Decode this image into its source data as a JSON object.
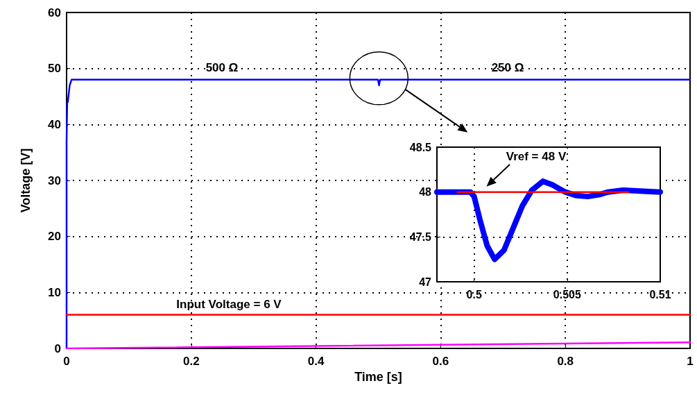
{
  "chart_data": [
    {
      "type": "line",
      "xlabel": "Time [s]",
      "ylabel": "Voltage [V]",
      "xlim": [
        0,
        1
      ],
      "ylim": [
        0,
        60
      ],
      "xticks": [
        0,
        0.2,
        0.4,
        0.6,
        0.8,
        1
      ],
      "yticks": [
        0,
        10,
        20,
        30,
        40,
        50,
        60
      ],
      "grid": true,
      "marker": "none",
      "line_style": "solid",
      "series": [
        {
          "color": "#0000ff",
          "x": [
            0,
            0,
            0.001,
            0.002,
            0.005,
            0.008,
            0.4995,
            0.5011,
            0.503,
            1
          ],
          "values": [
            0,
            37,
            44,
            44,
            47,
            48,
            48,
            47,
            48,
            48
          ]
        },
        {
          "color": "#ff0000",
          "x": [
            0,
            1
          ],
          "values": [
            6,
            6
          ]
        },
        {
          "color": "#ff00ff",
          "x": [
            0,
            1
          ],
          "values": [
            0,
            1.1
          ]
        }
      ],
      "annotations": [
        "500 Ω",
        "250 Ω",
        "Input Voltage = 6 V"
      ]
    },
    {
      "type": "line",
      "xlim": [
        0.498,
        0.51
      ],
      "ylim": [
        47,
        48.5
      ],
      "xticks": [
        0.5,
        0.505,
        0.51
      ],
      "yticks": [
        47,
        47.5,
        48,
        48.5
      ],
      "grid": true,
      "marker": "none",
      "line_style": "solid",
      "series": [
        {
          "color": "#0000ff",
          "x": [
            0.498,
            0.4998,
            0.5,
            0.5003,
            0.5007,
            0.5011,
            0.5016,
            0.5021,
            0.5026,
            0.5031,
            0.5037,
            0.5042,
            0.5049,
            0.5055,
            0.5061,
            0.5067,
            0.5072,
            0.508,
            0.51
          ],
          "values": [
            48,
            48,
            47.95,
            47.7,
            47.4,
            47.25,
            47.35,
            47.6,
            47.85,
            48.02,
            48.12,
            48.08,
            48,
            47.96,
            47.95,
            47.97,
            48,
            48.02,
            48
          ]
        },
        {
          "color": "#ff0000",
          "x": [
            0.4991,
            0.5083
          ],
          "values": [
            48,
            48
          ]
        }
      ],
      "annotations": [
        "Vref = 48 V"
      ]
    }
  ]
}
